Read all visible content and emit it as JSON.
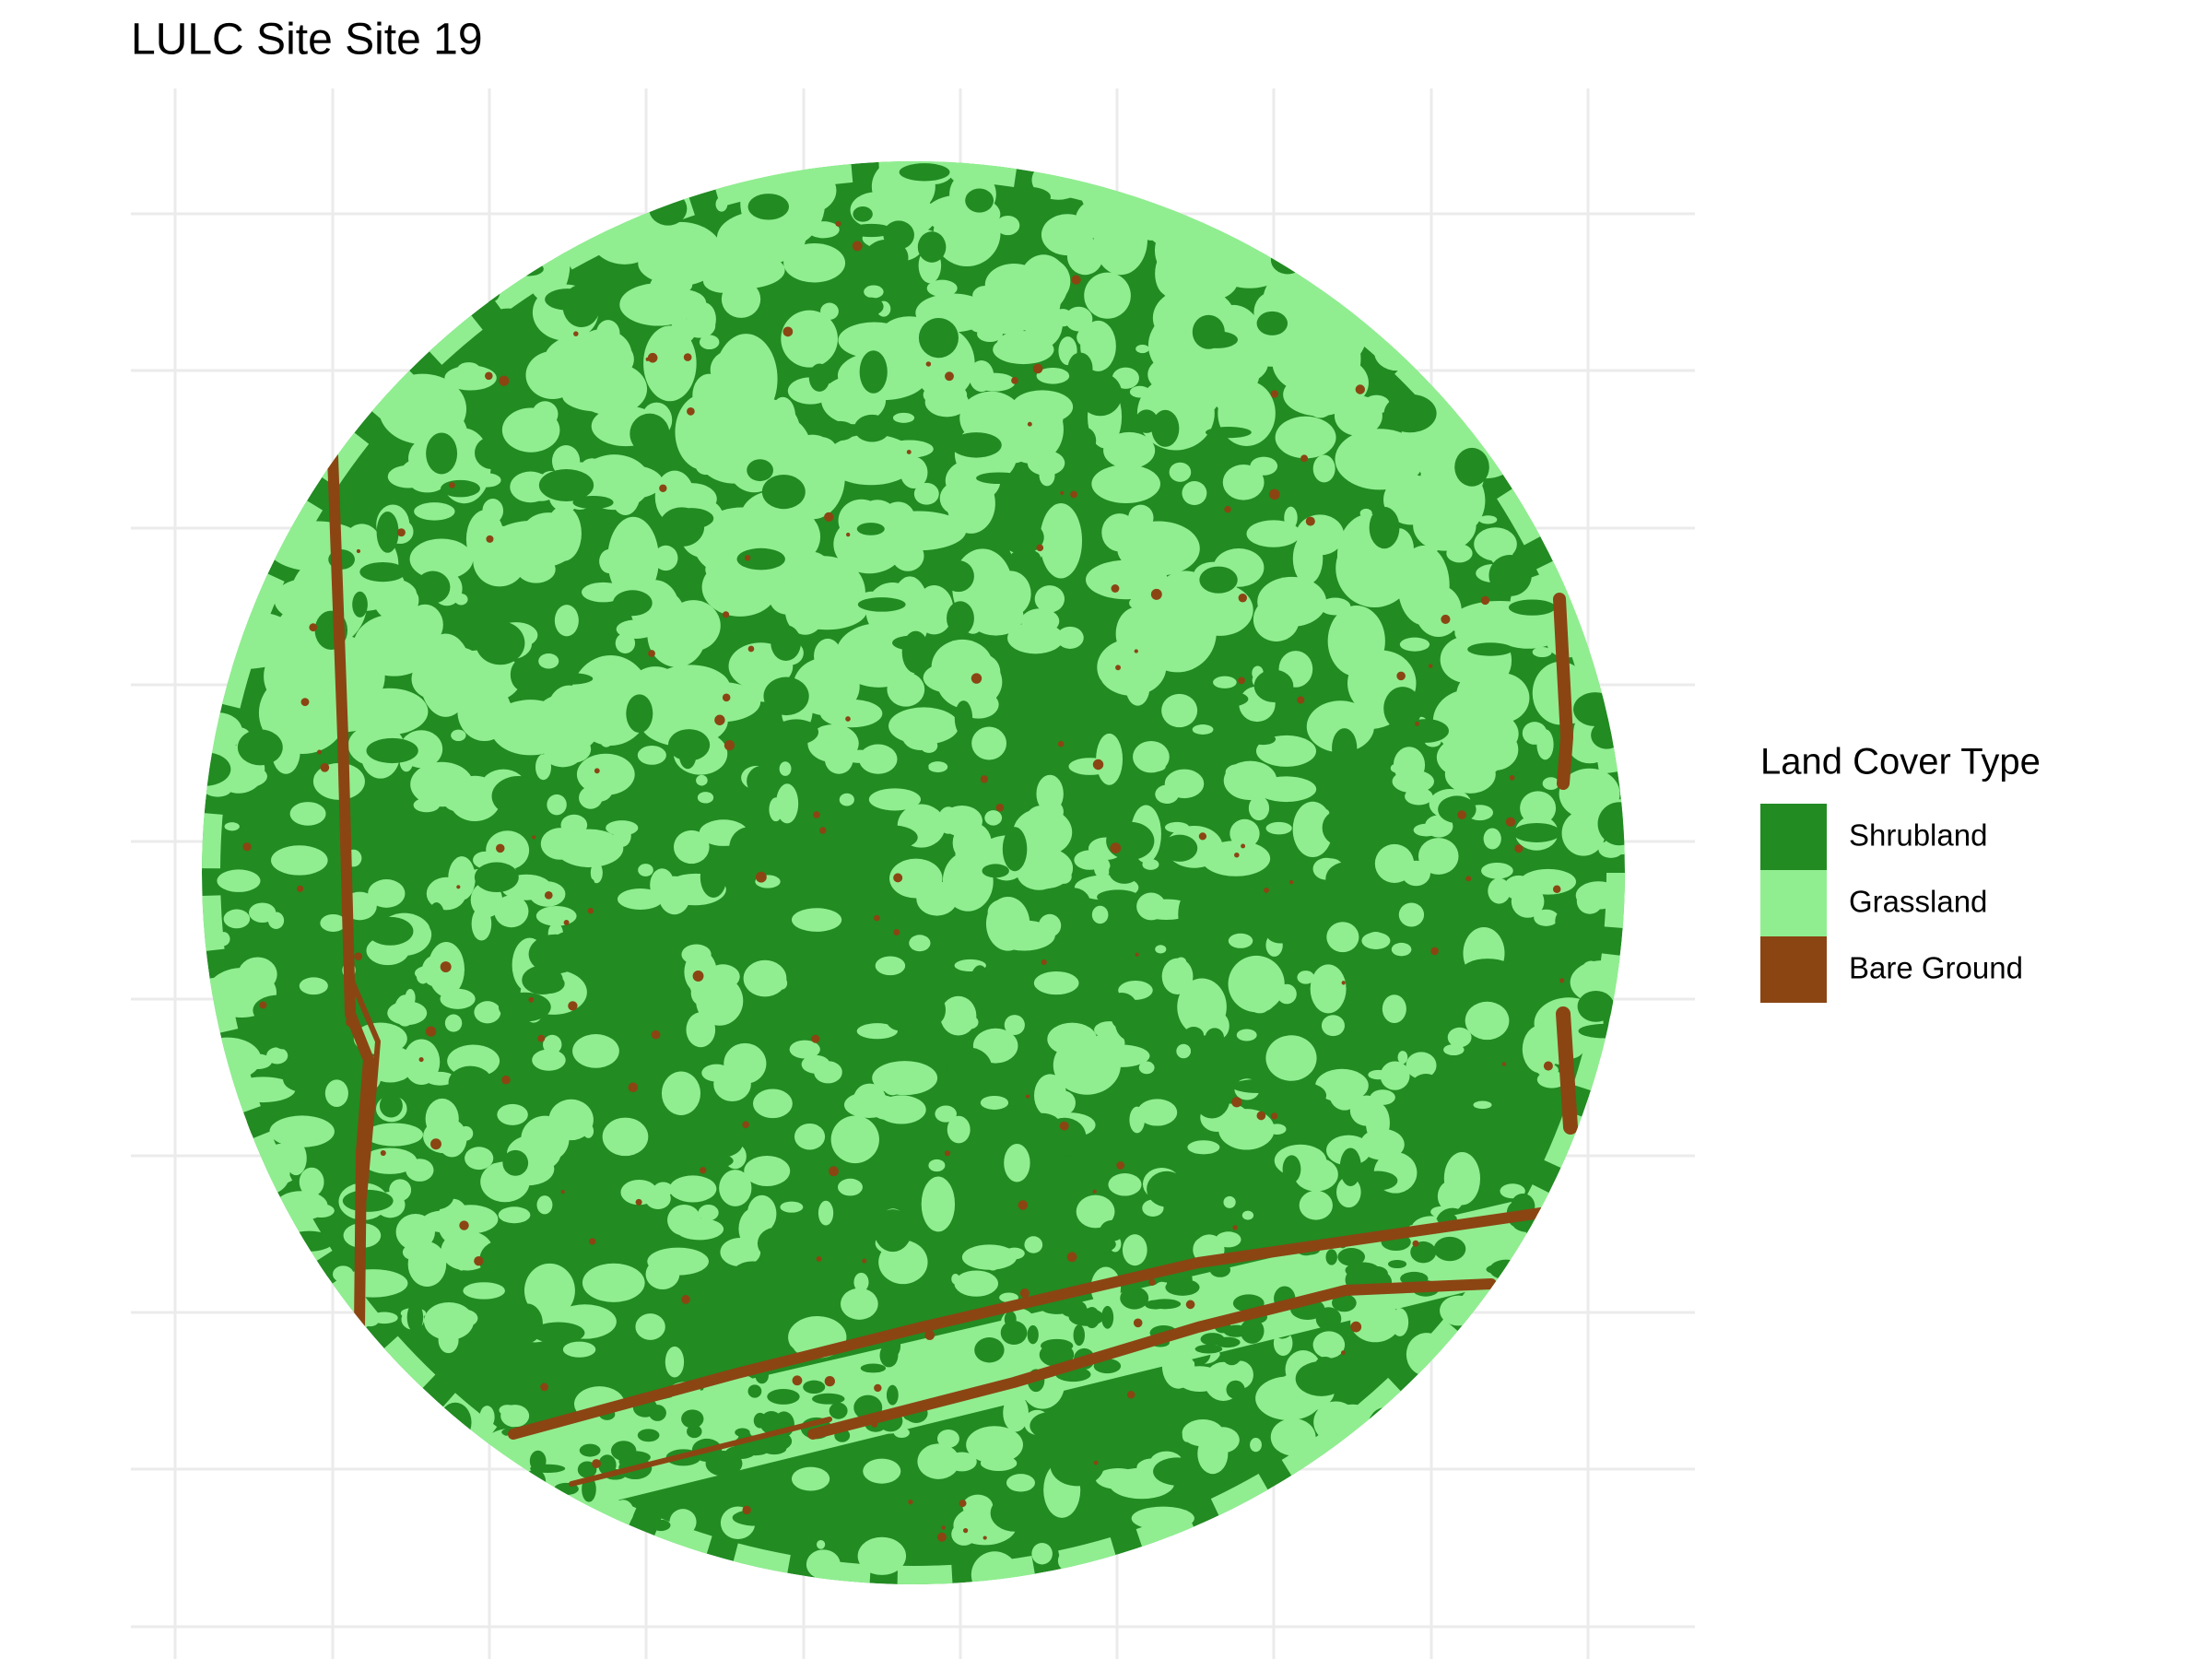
{
  "title": "LULC Site Site 19",
  "legend": {
    "title": "Land Cover Type",
    "items": [
      {
        "name": "Shrubland",
        "color": "#228B22"
      },
      {
        "name": "Grassland",
        "color": "#90EE90"
      },
      {
        "name": "Bare Ground",
        "color": "#8B4513"
      }
    ]
  }
}
